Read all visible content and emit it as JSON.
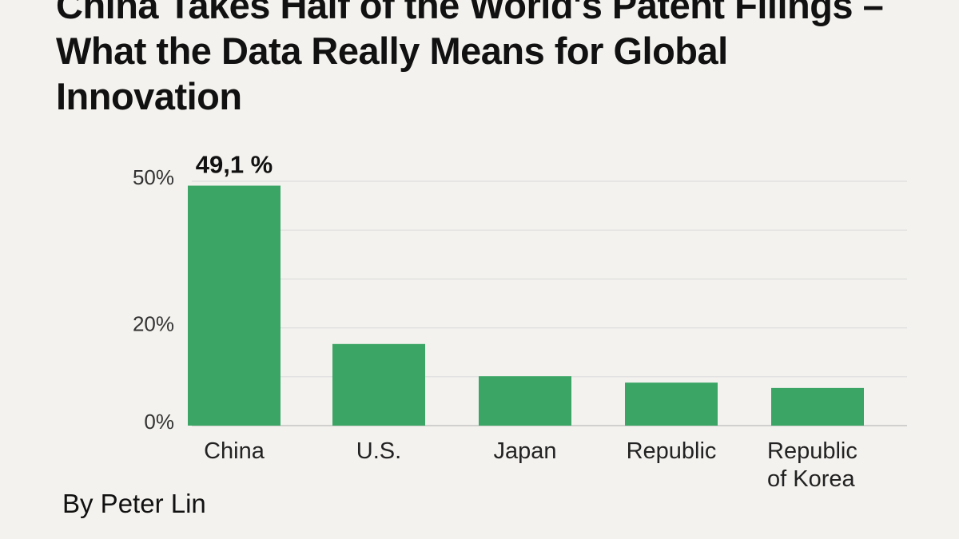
{
  "chart_data": {
    "type": "bar",
    "title": "China Takes Half of the World's Patent Filings – What the Data Really Means for Global Innovation",
    "byline": "By Peter Lin",
    "categories": [
      "China",
      "U.S.",
      "Japan",
      "Republic",
      "Republic of Korea"
    ],
    "values": [
      49.1,
      16.7,
      10.1,
      8.8,
      7.7
    ],
    "value_labels": [
      "49,1 %",
      null,
      null,
      null,
      null
    ],
    "color": "#3aa564",
    "ylim": [
      0,
      50
    ],
    "yticks": [
      {
        "value": 0,
        "label": "0%"
      },
      {
        "value": 10,
        "label": null
      },
      {
        "value": 20,
        "label": "20%"
      },
      {
        "value": 30,
        "label": null
      },
      {
        "value": 40,
        "label": null
      },
      {
        "value": 50,
        "label": "50%"
      }
    ],
    "grid": true
  }
}
